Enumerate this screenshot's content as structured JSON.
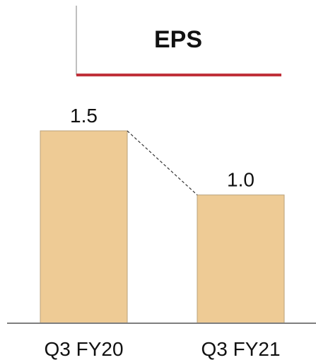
{
  "chart_data": {
    "type": "bar",
    "title": "EPS",
    "categories": [
      "Q3 FY20",
      "Q3 FY21"
    ],
    "values": [
      1.5,
      1.0
    ],
    "value_labels": [
      "1.5",
      "1.0"
    ],
    "xlabel": "",
    "ylabel": "",
    "ylim": [
      0,
      1.5
    ],
    "grid": false,
    "legend": "none",
    "connector": "dashed",
    "colors": {
      "bar": "#eecb95",
      "bar_outline": "#b9a07a",
      "accent_line": "#c0313a",
      "title_rule_gray": "#bfbfbf",
      "baseline": "#7f7f7f",
      "connector": "#333333"
    }
  }
}
